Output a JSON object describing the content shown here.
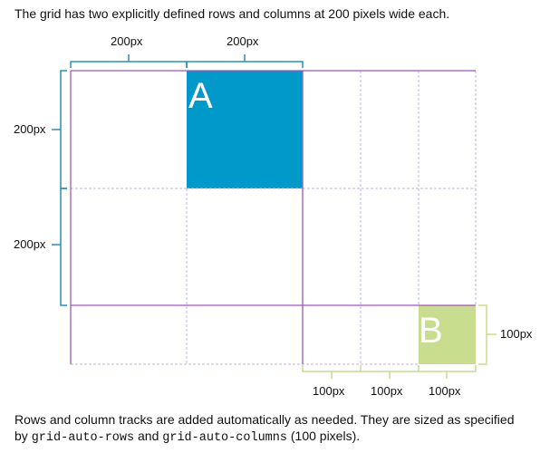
{
  "caption_top": "The grid has two explicitly defined rows and columns at 200 pixels wide each.",
  "caption_bottom": {
    "part1": "Rows and column tracks are added automatically as needed. They are sized as specified by ",
    "code1": "grid-auto-rows",
    "part2": " and ",
    "code2": "grid-auto-columns",
    "part3": " (100 pixels)."
  },
  "column_labels": [
    "200px",
    "200px"
  ],
  "row_labels": [
    "200px",
    "200px"
  ],
  "auto_column_labels": [
    "100px",
    "100px",
    "100px"
  ],
  "auto_row_label": "100px",
  "items": {
    "a": {
      "label": "A",
      "color": "#0099c9"
    },
    "b": {
      "label": "B",
      "color": "#c8de8e"
    }
  },
  "colors": {
    "explicit_line": "#9b59b6",
    "implicit_line": "#c9b3da",
    "bracket_blue": "#2a8fb8",
    "bracket_green": "#c8de8e"
  }
}
